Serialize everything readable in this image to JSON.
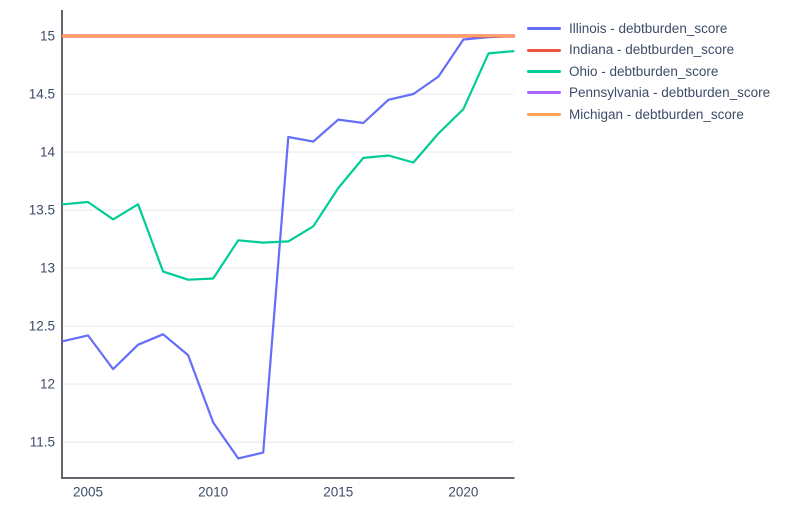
{
  "styles": {
    "background": "#ffffff",
    "grid_color": "#eaedf1",
    "axis_line_color": "#64646d",
    "tick_label_color": "#3e4c68",
    "legend_text_color": "#3e4c68"
  },
  "chart_data": {
    "type": "line",
    "title": "",
    "xlabel": "",
    "ylabel": "",
    "grid": true,
    "legend_position": "right",
    "x": [
      2004,
      2005,
      2006,
      2007,
      2008,
      2009,
      2010,
      2011,
      2012,
      2013,
      2014,
      2015,
      2016,
      2017,
      2018,
      2019,
      2020,
      2021,
      2022
    ],
    "x_range": [
      2003.96,
      2022
    ],
    "y_range": [
      11.2,
      15.224
    ],
    "x_ticks": [
      {
        "value": 2005,
        "label": "2005"
      },
      {
        "value": 2010,
        "label": "2010"
      },
      {
        "value": 2015,
        "label": "2015"
      },
      {
        "value": 2020,
        "label": "2020"
      }
    ],
    "y_ticks": [
      {
        "value": 11.5,
        "label": "11.5"
      },
      {
        "value": 12,
        "label": "12"
      },
      {
        "value": 12.5,
        "label": "12.5"
      },
      {
        "value": 13,
        "label": "13"
      },
      {
        "value": 13.5,
        "label": "13.5"
      },
      {
        "value": 14,
        "label": "14"
      },
      {
        "value": 14.5,
        "label": "14.5"
      },
      {
        "value": 15,
        "label": "15"
      }
    ],
    "series": [
      {
        "name": "Illinois - debtburden_score",
        "color": "#636EFA",
        "width": 2.2,
        "values": [
          12.37,
          12.42,
          12.13,
          12.34,
          12.43,
          12.25,
          11.67,
          11.36,
          11.41,
          14.13,
          14.09,
          14.28,
          14.25,
          14.45,
          14.5,
          14.65,
          14.97,
          14.99,
          15.0
        ]
      },
      {
        "name": "Indiana - debtburden_score",
        "color": "#EF553B",
        "width": 3.2,
        "values": [
          15.0,
          15.0,
          15.0,
          15.0,
          15.0,
          15.0,
          15.0,
          15.0,
          15.0,
          15.0,
          15.0,
          15.0,
          15.0,
          15.0,
          15.0,
          15.0,
          15.0,
          15.0,
          15.0
        ]
      },
      {
        "name": "Ohio - debtburden_score",
        "color": "#00CC96",
        "width": 2.2,
        "values": [
          13.55,
          13.57,
          13.42,
          13.55,
          12.97,
          12.9,
          12.91,
          13.24,
          13.22,
          13.23,
          13.36,
          13.69,
          13.95,
          13.97,
          13.91,
          14.16,
          14.37,
          14.85,
          14.87
        ]
      },
      {
        "name": "Pennsylvania - debtburden_score",
        "color": "#AB63FA",
        "width": 2.2,
        "values": [
          15.0,
          15.0,
          15.0,
          15.0,
          15.0,
          15.0,
          15.0,
          15.0,
          15.0,
          15.0,
          15.0,
          15.0,
          15.0,
          15.0,
          15.0,
          15.0,
          15.0,
          15.0,
          15.0
        ]
      },
      {
        "name": "Michigan - debtburden_score",
        "color": "#FFA15A",
        "width": 2.2,
        "values": [
          15.0,
          15.0,
          15.0,
          15.0,
          15.0,
          15.0,
          15.0,
          15.0,
          15.0,
          15.0,
          15.0,
          15.0,
          15.0,
          15.0,
          15.0,
          15.0,
          15.0,
          15.0,
          15.0
        ]
      }
    ]
  }
}
